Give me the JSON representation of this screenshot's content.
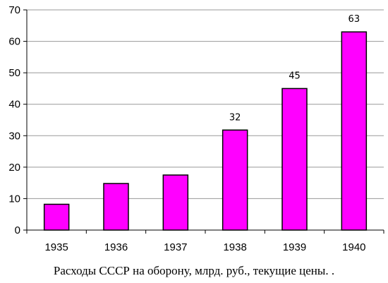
{
  "chart_data": {
    "type": "bar",
    "title": "",
    "caption": "Расходы СССР на оборону, млрд. руб., текущие цены. .",
    "categories": [
      "1935",
      "1936",
      "1937",
      "1938",
      "1939",
      "1940"
    ],
    "values": [
      8.2,
      14.8,
      17.5,
      31.8,
      45,
      63
    ],
    "data_labels": [
      "",
      "",
      "",
      "32",
      "45",
      "63"
    ],
    "xlabel": "",
    "ylabel": "",
    "ylim": [
      0,
      70
    ],
    "yticks": [
      0,
      10,
      20,
      30,
      40,
      50,
      60,
      70
    ],
    "grid": true,
    "legend": "none",
    "bar_color": "#ff00ff",
    "bar_border_color": "#000000",
    "grid_color": "#999999"
  }
}
